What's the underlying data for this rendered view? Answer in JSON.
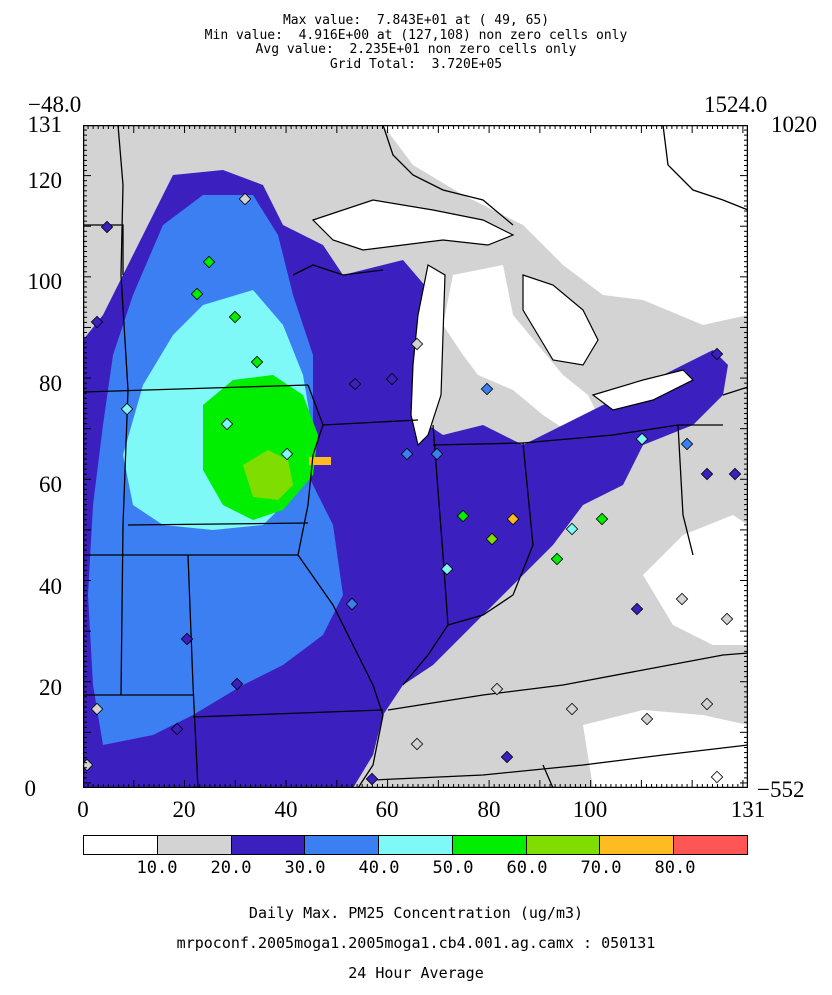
{
  "stats": {
    "max": "Max value:  7.843E+01 at ( 49, 65)",
    "min": "Min value:  4.916E+00 at (127,108) non zero cells only",
    "avg": "Avg value:  2.235E+01 non zero cells only",
    "total": "Grid Total:  3.720E+05"
  },
  "corners": {
    "top_left_x": "−48.0",
    "top_right_x": "1524.0",
    "top_right_y": "1020",
    "bottom_right_y": "−552"
  },
  "y_axis": {
    "ticks": [
      "131",
      "120",
      "100",
      "80",
      "60",
      "40",
      "20",
      "0"
    ]
  },
  "x_axis": {
    "ticks": [
      "0",
      "20",
      "40",
      "60",
      "80",
      "100",
      "131"
    ]
  },
  "colorbar": {
    "labels": [
      "10.0",
      "20.0",
      "30.0",
      "40.0",
      "50.0",
      "60.0",
      "70.0",
      "80.0"
    ],
    "colors": [
      "#ffffff",
      "#d3d3d3",
      "#3b1fbf",
      "#3b7ff2",
      "#7ff8f8",
      "#00ee00",
      "#7fdd00",
      "#ffbb22",
      "#ff5555"
    ]
  },
  "footer": {
    "title": "Daily Max. PM25 Concentration (ug/m3)",
    "run": "mrpoconf.2005moga1.2005moga1.cb4.001.ag.camx : 050131",
    "period": "24 Hour Average"
  },
  "chart_data": {
    "type": "heatmap",
    "grid": {
      "cols": 131,
      "rows": 131
    },
    "max": {
      "value": 78.43,
      "col": 49,
      "row": 65
    },
    "min": {
      "value": 4.916,
      "col": 127,
      "row": 108
    },
    "avg": 22.35,
    "total": 372000
  }
}
